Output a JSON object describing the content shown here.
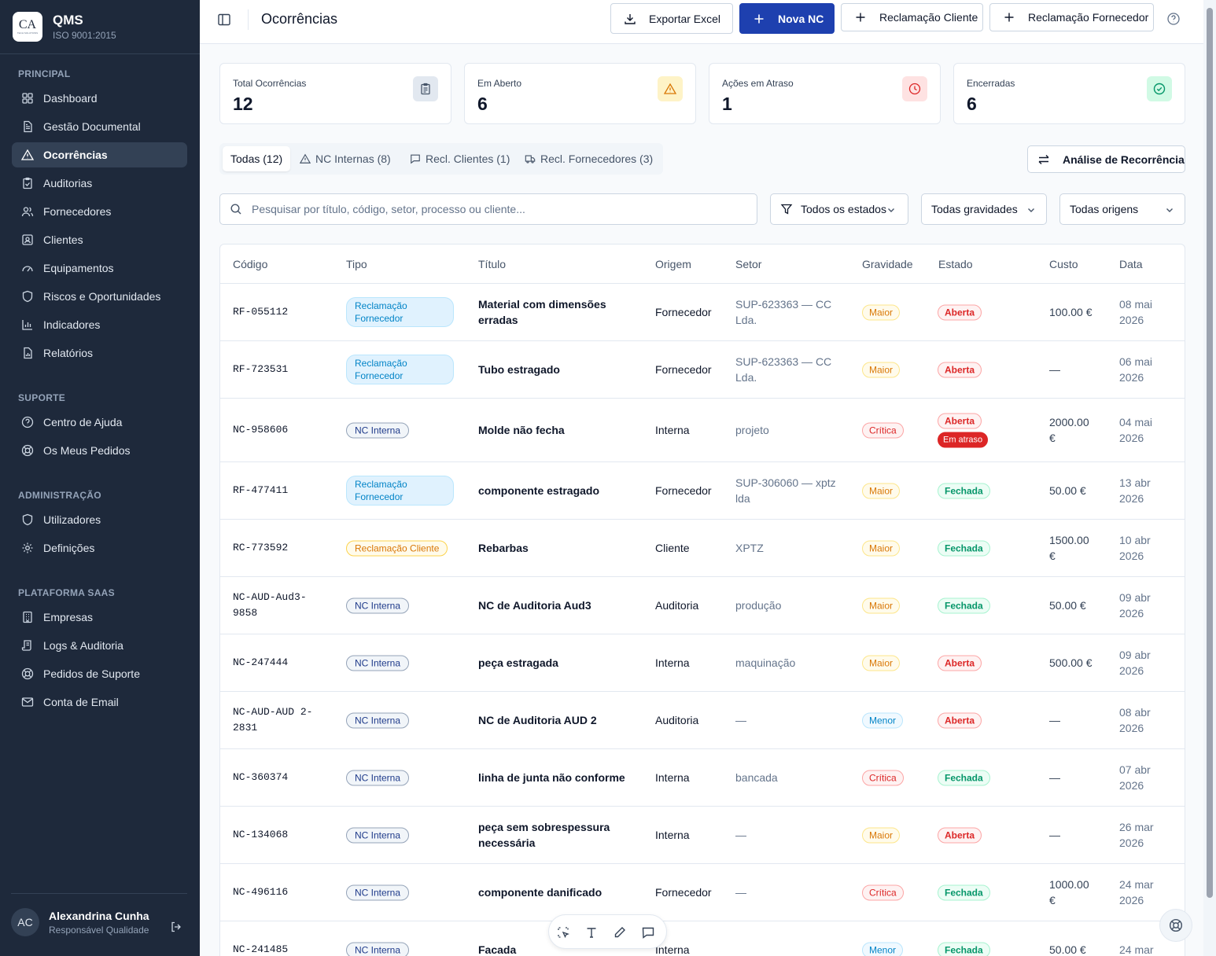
{
  "brand": {
    "logo_text": "CA",
    "logo_small": "TECH SOLUTIONS",
    "title": "QMS",
    "subtitle": "ISO 9001:2015"
  },
  "sidebar": {
    "sections": [
      "PRINCIPAL",
      "SUPORTE",
      "ADMINISTRAÇÃO",
      "PLATAFORMA SAAS"
    ],
    "principal": [
      {
        "label": "Dashboard",
        "icon": "layout-grid-icon"
      },
      {
        "label": "Gestão Documental",
        "icon": "file-text-icon"
      },
      {
        "label": "Ocorrências",
        "icon": "alert-triangle-icon",
        "active": true
      },
      {
        "label": "Auditorias",
        "icon": "clipboard-check-icon"
      },
      {
        "label": "Fornecedores",
        "icon": "users-icon"
      },
      {
        "label": "Clientes",
        "icon": "contact-icon"
      },
      {
        "label": "Equipamentos",
        "icon": "gauge-icon"
      },
      {
        "label": "Riscos e Oportunidades",
        "icon": "shield-icon"
      },
      {
        "label": "Indicadores",
        "icon": "bar-chart-icon"
      },
      {
        "label": "Relatórios",
        "icon": "file-chart-icon"
      }
    ],
    "suporte": [
      {
        "label": "Centro de Ajuda",
        "icon": "help-circle-icon"
      },
      {
        "label": "Os Meus Pedidos",
        "icon": "lifebuoy-icon"
      }
    ],
    "admin": [
      {
        "label": "Utilizadores",
        "icon": "shield-icon"
      },
      {
        "label": "Definições",
        "icon": "settings-icon"
      }
    ],
    "saas": [
      {
        "label": "Empresas",
        "icon": "building-icon"
      },
      {
        "label": "Logs & Auditoria",
        "icon": "scroll-text-icon"
      },
      {
        "label": "Pedidos de Suporte",
        "icon": "lifebuoy-icon"
      },
      {
        "label": "Conta de Email",
        "icon": "mail-icon"
      }
    ]
  },
  "user": {
    "initials": "AC",
    "name": "Alexandrina Cunha",
    "role": "Responsável Qualidade"
  },
  "header": {
    "title": "Ocorrências",
    "export_label": "Exportar Excel",
    "new_nc_label": "Nova NC",
    "client_complaint_label": "Reclamação Cliente",
    "supplier_complaint_label": "Reclamação Fornecedor"
  },
  "stats": [
    {
      "label": "Total Ocorrências",
      "value": "12",
      "color": "#475569"
    },
    {
      "label": "Em Aberto",
      "value": "6",
      "color": "#d97706"
    },
    {
      "label": "Ações em Atraso",
      "value": "1",
      "color": "#dc2626"
    },
    {
      "label": "Encerradas",
      "value": "6",
      "color": "#059669"
    }
  ],
  "tabs": [
    "Todas (12)",
    "NC Internas (8)",
    "Recl. Clientes (1)",
    "Recl. Fornecedores (3)"
  ],
  "recurrence_label": "Análise de Recorrência",
  "filters": {
    "search_placeholder": "Pesquisar por título, código, setor, processo ou cliente...",
    "estado": "Todos os estados",
    "gravidade": "Todas gravidades",
    "origem": "Todas origens"
  },
  "table": {
    "headers": [
      "Código",
      "Tipo",
      "Título",
      "Origem",
      "Setor",
      "Gravidade",
      "Estado",
      "Custo",
      "Data"
    ],
    "rows": [
      {
        "code": "RF-055112",
        "type": "Reclamação Fornecedor",
        "title": "Material com dimensões erradas",
        "origin": "Fornecedor",
        "setor": "SUP-623363 — CC Lda.",
        "grav": "Maior",
        "estado": "Aberta",
        "atraso": "",
        "custo": "100.00 €",
        "data": "08 mai 2026"
      },
      {
        "code": "RF-723531",
        "type": "Reclamação Fornecedor",
        "title": "Tubo estragado",
        "origin": "Fornecedor",
        "setor": "SUP-623363 — CC Lda.",
        "grav": "Maior",
        "estado": "Aberta",
        "atraso": "",
        "custo": "—",
        "data": "06 mai 2026"
      },
      {
        "code": "NC-958606",
        "type": "NC Interna",
        "title": "Molde não fecha",
        "origin": "Interna",
        "setor": "projeto",
        "grav": "Crítica",
        "estado": "Aberta",
        "atraso": "Em atraso",
        "custo": "2000.00 €",
        "data": "04 mai 2026"
      },
      {
        "code": "RF-477411",
        "type": "Reclamação Fornecedor",
        "title": "componente estragado",
        "origin": "Fornecedor",
        "setor": "SUP-306060 — xptz lda",
        "grav": "Maior",
        "estado": "Fechada",
        "atraso": "",
        "custo": "50.00 €",
        "data": "13 abr 2026"
      },
      {
        "code": "RC-773592",
        "type": "Reclamação Cliente",
        "title": "Rebarbas",
        "origin": "Cliente",
        "setor": "XPTZ",
        "grav": "Maior",
        "estado": "Fechada",
        "atraso": "",
        "custo": "1500.00 €",
        "data": "10 abr 2026"
      },
      {
        "code": "NC-AUD-Aud3-9858",
        "type": "NC Interna",
        "title": "NC de Auditoria Aud3",
        "origin": "Auditoria",
        "setor": "produção",
        "grav": "Maior",
        "estado": "Fechada",
        "atraso": "",
        "custo": "50.00 €",
        "data": "09 abr 2026"
      },
      {
        "code": "NC-247444",
        "type": "NC Interna",
        "title": "peça estragada",
        "origin": "Interna",
        "setor": "maquinação",
        "grav": "Maior",
        "estado": "Aberta",
        "atraso": "",
        "custo": "500.00 €",
        "data": "09 abr 2026"
      },
      {
        "code": "NC-AUD-AUD 2-2831",
        "type": "NC Interna",
        "title": "NC de Auditoria AUD 2",
        "origin": "Auditoria",
        "setor": "—",
        "grav": "Menor",
        "estado": "Aberta",
        "atraso": "",
        "custo": "—",
        "data": "08 abr 2026"
      },
      {
        "code": "NC-360374",
        "type": "NC Interna",
        "title": "linha de junta não conforme",
        "origin": "Interna",
        "setor": "bancada",
        "grav": "Crítica",
        "estado": "Fechada",
        "atraso": "",
        "custo": "—",
        "data": "07 abr 2026"
      },
      {
        "code": "NC-134068",
        "type": "NC Interna",
        "title": "peça sem sobrespessura necessária",
        "origin": "Interna",
        "setor": "—",
        "grav": "Maior",
        "estado": "Aberta",
        "atraso": "",
        "custo": "—",
        "data": "26 mar 2026"
      },
      {
        "code": "NC-496116",
        "type": "NC Interna",
        "title": "componente danificado",
        "origin": "Fornecedor",
        "setor": "—",
        "grav": "Crítica",
        "estado": "Fechada",
        "atraso": "",
        "custo": "1000.00 €",
        "data": "24 mar 2026"
      },
      {
        "code": "NC-241485",
        "type": "NC Interna",
        "title": "Facada",
        "origin": "Interna",
        "setor": "",
        "grav": "Menor",
        "estado": "Fechada",
        "atraso": "",
        "custo": "50.00 €",
        "data": "24 mar"
      }
    ]
  }
}
